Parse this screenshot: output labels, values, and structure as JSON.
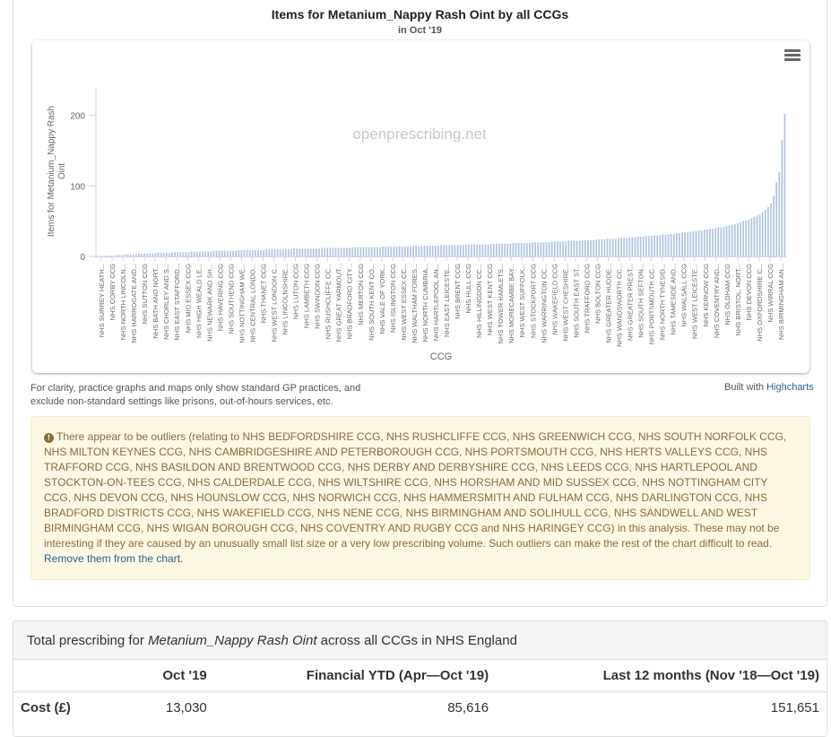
{
  "chart": {
    "title": "Items for Metanium_Nappy Rash Oint by all CCGs",
    "subtitle": "in Oct '19",
    "watermark": "openprescribing.net",
    "menu_icon": "hamburger-menu-icon",
    "bar_color": "#b0c4e0"
  },
  "chart_data": {
    "type": "bar",
    "title": "Items for Metanium_Nappy Rash Oint by all CCGs",
    "subtitle": "in Oct '19",
    "xlabel": "CCG",
    "ylabel": "Items for Metanium_Nappy Rash Oint",
    "ylim": [
      0,
      240
    ],
    "yticks": [
      0,
      100,
      200
    ],
    "grid": false,
    "x_tick_labels": [
      "NHS SURREY HEATH...",
      "NHS CORBY CCG",
      "NHS NORTH LINCOLN...",
      "NHS HARROGATE AND...",
      "NHS SUTTON CCG",
      "NHS BATH AND NORT...",
      "NHS CHORLEY AND S...",
      "NHS EAST STAFFORD...",
      "NHS MID ESSEX CCG",
      "NHS HIGH WEALD LE...",
      "NHS NEWARK AND SH...",
      "NHS HAVERING CCG",
      "NHS SOUTHEND CCG",
      "NHS NOTTINGHAM WE...",
      "NHS CENTRAL LONDO...",
      "NHS THANET CCG",
      "NHS WEST LONDON C...",
      "NHS LINCOLNSHIRE...",
      "NHS LUTON CCG",
      "NHS LAMBETH CCG",
      "NHS SWINDON CCG",
      "NHS RUSHCLIFFE CC...",
      "NHS GREAT YARMOUT...",
      "NHS BRADFORD CITY...",
      "NHS MERTON CCG",
      "NHS SOUTH KENT CO...",
      "NHS VALE OF YORK...",
      "NHS ISLINGTON CCG",
      "NHS WEST ESSEX CC...",
      "NHS WALTHAM FORES...",
      "NHS NORTH CUMBRIA...",
      "NHS HARTLEPOOL AN...",
      "NHS EAST LEICESTE...",
      "NHS BRENT CCG",
      "NHS HULL CCG",
      "NHS HILLINGDON CC...",
      "NHS WEST KENT CCG",
      "NHS TOWER HAMLETS...",
      "NHS MORECAMBE BAY...",
      "NHS WEST SUFFOLK...",
      "NHS STOCKPORT CCG",
      "NHS WARRINGTON CC...",
      "NHS WAKEFIELD CCG",
      "NHS WEST CHESHIRE...",
      "NHS SOUTH EAST ST...",
      "NHS TRAFFORD CCG",
      "NHS BOLTON CCG",
      "NHS GREATER HUDDE...",
      "NHS WANDSWORTH CC...",
      "NHS GREATER PREST...",
      "NHS SOUTH SEFTON...",
      "NHS PORTSMOUTH CC...",
      "NHS NORTH TYNESID...",
      "NHS TAMESIDE AND...",
      "NHS WALSALL CCG",
      "NHS WEST LEICESTE...",
      "NHS KERNOW CCG",
      "NHS COVENTRY AND...",
      "NHS OLDHAM CCG",
      "NHS BRISTOL, NORT...",
      "NHS DEVON CCG",
      "NHS OXFORDSHIRE C...",
      "NHS WIRRAL CCG",
      "NHS BIRMINGHAM AN..."
    ],
    "values": [
      0,
      0,
      0,
      1,
      1,
      1,
      1,
      2,
      2,
      2,
      3,
      3,
      3,
      3,
      3,
      4,
      4,
      4,
      4,
      4,
      4,
      5,
      5,
      5,
      5,
      5,
      5,
      6,
      6,
      6,
      6,
      6,
      6,
      6,
      7,
      7,
      7,
      7,
      7,
      7,
      7,
      7,
      8,
      8,
      8,
      8,
      8,
      8,
      8,
      8,
      8,
      9,
      9,
      9,
      9,
      9,
      9,
      9,
      9,
      9,
      9,
      10,
      10,
      10,
      10,
      10,
      10,
      10,
      10,
      10,
      10,
      11,
      11,
      11,
      11,
      11,
      11,
      11,
      11,
      11,
      11,
      12,
      12,
      12,
      12,
      12,
      12,
      12,
      12,
      12,
      12,
      12,
      13,
      13,
      13,
      13,
      13,
      13,
      13,
      13,
      13,
      13,
      13,
      14,
      14,
      14,
      14,
      14,
      14,
      14,
      14,
      14,
      14,
      14,
      15,
      15,
      15,
      15,
      15,
      15,
      15,
      15,
      15,
      15,
      16,
      16,
      16,
      16,
      16,
      16,
      16,
      16,
      16,
      17,
      17,
      17,
      17,
      17,
      17,
      17,
      17,
      17,
      18,
      18,
      18,
      18,
      18,
      18,
      18,
      18,
      19,
      19,
      19,
      19,
      19,
      19,
      19,
      20,
      20,
      20,
      20,
      20,
      20,
      20,
      21,
      21,
      21,
      21,
      21,
      21,
      22,
      22,
      22,
      22,
      22,
      23,
      23,
      23,
      23,
      23,
      24,
      24,
      24,
      24,
      25,
      25,
      25,
      25,
      26,
      26,
      26,
      26,
      27,
      27,
      27,
      28,
      28,
      28,
      29,
      29,
      29,
      30,
      30,
      30,
      31,
      31,
      31,
      32,
      32,
      33,
      33,
      34,
      34,
      35,
      35,
      36,
      36,
      37,
      37,
      38,
      38,
      39,
      39,
      40,
      41,
      41,
      42,
      43,
      44,
      45,
      46,
      47,
      48,
      50,
      51,
      52,
      54,
      56,
      58,
      60,
      63,
      66,
      70,
      75,
      85,
      105,
      120,
      165,
      202
    ]
  },
  "notes": {
    "clarity": "For clarity, practice graphs and maps only show standard GP practices, and exclude non-standard settings like prisons, out-of-hours services, etc.",
    "built_with_prefix": "Built with ",
    "built_with_link": "Highcharts"
  },
  "alert": {
    "icon": "info-circle-icon",
    "text": "There appear to be outliers (relating to NHS BEDFORDSHIRE CCG, NHS RUSHCLIFFE CCG, NHS GREENWICH CCG, NHS SOUTH NORFOLK CCG, NHS MILTON KEYNES CCG, NHS CAMBRIDGESHIRE AND PETERBOROUGH CCG, NHS PORTSMOUTH CCG, NHS HERTS VALLEYS CCG, NHS TRAFFORD CCG, NHS BASILDON AND BRENTWOOD CCG, NHS DERBY AND DERBYSHIRE CCG, NHS LEEDS CCG, NHS HARTLEPOOL AND STOCKTON-ON-TEES CCG, NHS CALDERDALE CCG, NHS WILTSHIRE CCG, NHS HORSHAM AND MID SUSSEX CCG, NHS NOTTINGHAM CITY CCG, NHS DEVON CCG, NHS HOUNSLOW CCG, NHS NORWICH CCG, NHS HAMMERSMITH AND FULHAM CCG, NHS DARLINGTON CCG, NHS BRADFORD DISTRICTS CCG, NHS WAKEFIELD CCG, NHS NENE CCG, NHS BIRMINGHAM AND SOLIHULL CCG, NHS SANDWELL AND WEST BIRMINGHAM CCG, NHS WIGAN BOROUGH CCG, NHS COVENTRY AND RUGBY CCG and NHS HARINGEY CCG) in this analysis. These may not be interesting if they are caused by an unusually small list size or a very low prescribing volume. Such outliers can make the rest of the chart difficult to read.",
    "link": "Remove them from the chart."
  },
  "summary": {
    "heading_prefix": "Total prescribing for ",
    "heading_item": "Metanium_Nappy Rash Oint",
    "heading_suffix": " across all CCGs in NHS England",
    "columns": [
      "",
      "Oct '19",
      "Financial YTD (Apr—Oct '19)",
      "Last 12 months (Nov '18—Oct '19)"
    ],
    "rows": [
      {
        "label": "Cost (£)",
        "values": [
          "13,030",
          "85,616",
          "151,651"
        ]
      }
    ]
  }
}
